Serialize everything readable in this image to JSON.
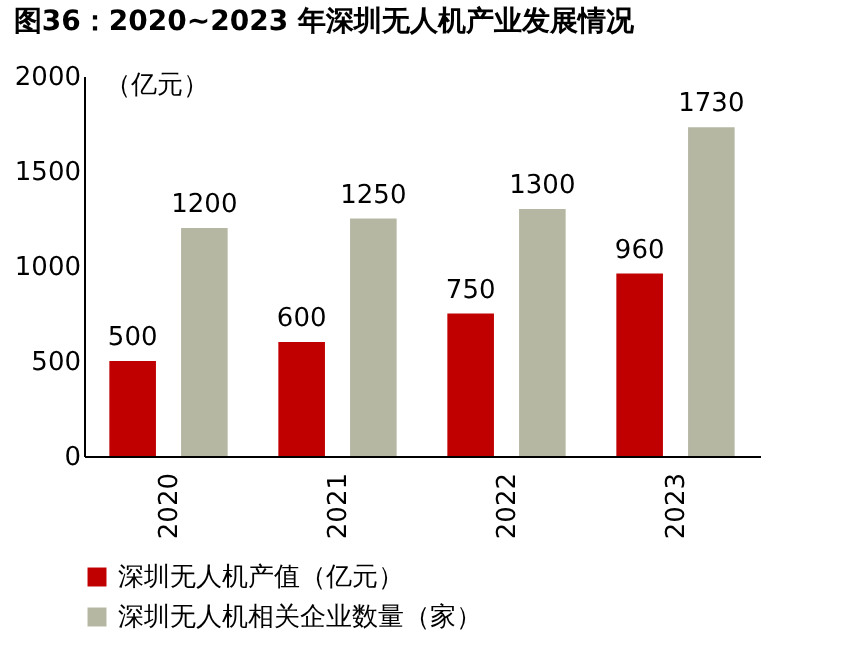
{
  "chart_data": {
    "type": "bar",
    "title": "图36：2020~2023 年深圳无人机产业发展情况",
    "ylabel": "（亿元）",
    "categories": [
      "2020",
      "2021",
      "2022",
      "2023"
    ],
    "series": [
      {
        "name": "深圳无人机产值（亿元）",
        "color": "#c00000",
        "values": [
          500,
          600,
          750,
          960
        ]
      },
      {
        "name": "深圳无人机相关企业数量（家）",
        "color": "#b6b7a3",
        "values": [
          1200,
          1250,
          1300,
          1730
        ]
      }
    ],
    "ylim": [
      0,
      2000
    ],
    "yticks": [
      0,
      500,
      1000,
      1500,
      2000
    ],
    "data_labels": true,
    "legend": "bottom"
  }
}
